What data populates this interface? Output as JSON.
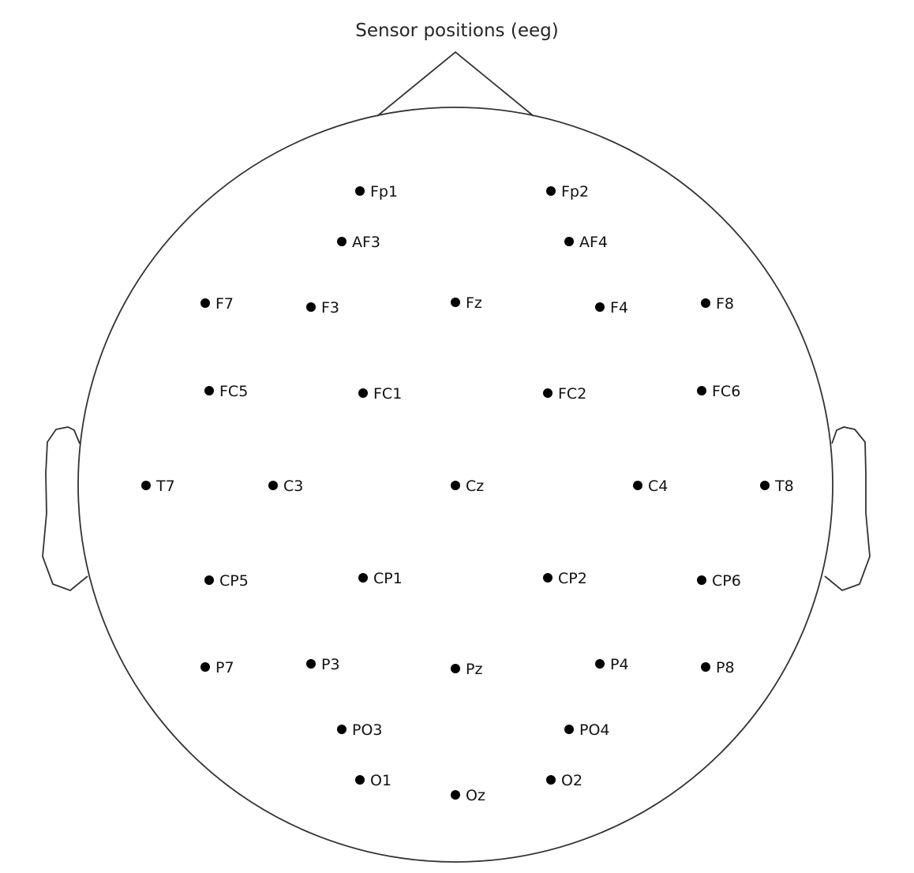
{
  "title": "Sensor positions (eeg)",
  "colors": {
    "outline": "#333333",
    "sensor": "#000000",
    "text": "#111111"
  },
  "sensors": [
    {
      "label": "Fp1"
    },
    {
      "label": "Fp2"
    },
    {
      "label": "AF3"
    },
    {
      "label": "AF4"
    },
    {
      "label": "F7"
    },
    {
      "label": "F3"
    },
    {
      "label": "Fz"
    },
    {
      "label": "F4"
    },
    {
      "label": "F8"
    },
    {
      "label": "FC5"
    },
    {
      "label": "FC1"
    },
    {
      "label": "FC2"
    },
    {
      "label": "FC6"
    },
    {
      "label": "T7"
    },
    {
      "label": "C3"
    },
    {
      "label": "Cz"
    },
    {
      "label": "C4"
    },
    {
      "label": "T8"
    },
    {
      "label": "CP5"
    },
    {
      "label": "CP1"
    },
    {
      "label": "CP2"
    },
    {
      "label": "CP6"
    },
    {
      "label": "P7"
    },
    {
      "label": "P3"
    },
    {
      "label": "Pz"
    },
    {
      "label": "P4"
    },
    {
      "label": "P8"
    },
    {
      "label": "PO3"
    },
    {
      "label": "PO4"
    },
    {
      "label": "O1"
    },
    {
      "label": "Oz"
    },
    {
      "label": "O2"
    }
  ]
}
